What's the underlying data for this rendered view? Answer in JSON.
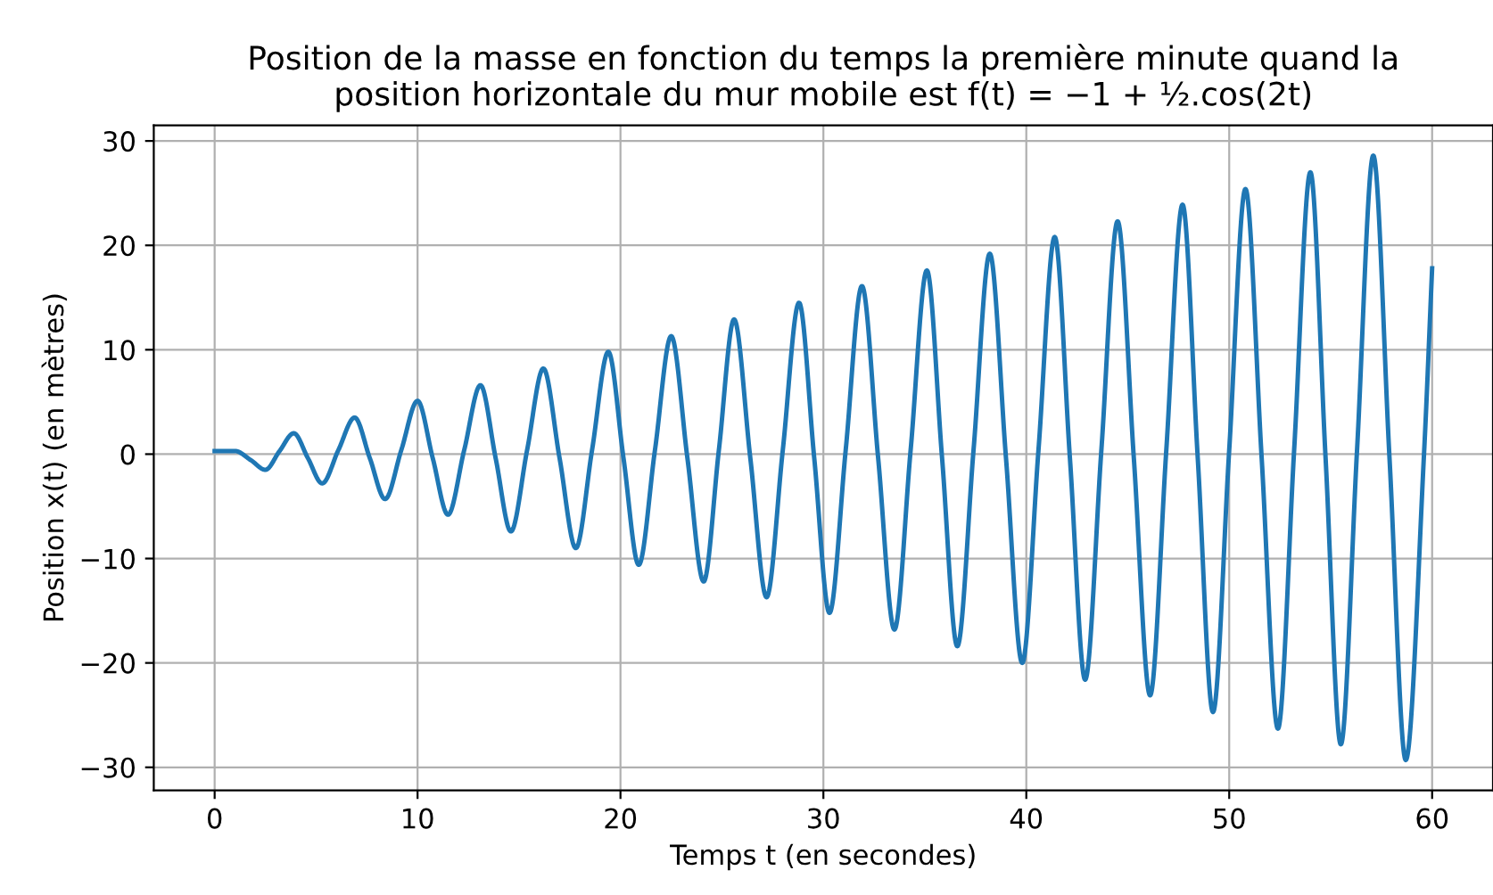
{
  "chart_data": {
    "type": "line",
    "title": "Position de la masse en fonction du temps la première minute quand la\nposition horizontale du mur mobile est f(t) = −1 + ½.cos(2t)",
    "xlabel": "Temps t (en secondes)",
    "ylabel": "Position x(t) (en mètres)",
    "x": [
      0,
      1.0,
      1.8,
      2.5,
      3.2,
      3.9,
      4.6,
      5.3,
      6.1,
      6.9,
      7.65,
      8.4,
      9.2,
      10.0,
      10.75,
      11.5,
      12.3,
      13.1,
      13.85,
      14.6,
      15.4,
      16.2,
      17.0,
      17.8,
      18.6,
      19.4,
      20.15,
      20.9,
      21.7,
      22.5,
      23.3,
      24.1,
      24.85,
      25.6,
      26.4,
      27.2,
      28.0,
      28.8,
      29.55,
      30.3,
      31.1,
      31.9,
      32.7,
      33.5,
      34.3,
      35.1,
      35.85,
      36.6,
      37.4,
      38.2,
      39.0,
      39.8,
      40.6,
      41.4,
      42.15,
      42.9,
      43.7,
      44.5,
      45.3,
      46.1,
      46.9,
      47.7,
      48.45,
      49.2,
      50.0,
      50.8,
      51.6,
      52.4,
      53.2,
      54.0,
      54.75,
      55.5,
      56.3,
      57.1,
      57.9,
      58.7,
      59.6,
      60
    ],
    "series": [
      {
        "color": "#1f77b4",
        "values": [
          0.3,
          0.3,
          -0.6,
          -1.5,
          0.3,
          2.0,
          -0.4,
          -2.8,
          0.4,
          3.5,
          -0.4,
          -4.3,
          0.4,
          5.1,
          -0.4,
          -5.8,
          0.4,
          6.6,
          -0.4,
          -7.4,
          0.4,
          8.2,
          -0.4,
          -9.0,
          0.4,
          9.8,
          -0.4,
          -10.6,
          0.4,
          11.3,
          -0.4,
          -12.2,
          0.4,
          12.9,
          -0.4,
          -13.7,
          0.4,
          14.5,
          -0.4,
          -15.2,
          0.4,
          16.1,
          -0.4,
          -16.8,
          0.4,
          17.6,
          -0.4,
          -18.4,
          0.4,
          19.2,
          -0.4,
          -20.0,
          0.4,
          20.8,
          -0.4,
          -21.6,
          0.4,
          22.3,
          -0.4,
          -23.1,
          0.4,
          23.9,
          -0.4,
          -24.7,
          0.4,
          25.4,
          -0.4,
          -26.3,
          0.4,
          27.0,
          -0.4,
          -27.8,
          0.4,
          28.6,
          -0.4,
          -29.3,
          0,
          17.8
        ]
      }
    ],
    "xlim": [
      -3,
      63
    ],
    "ylim": [
      -32.2,
      31.5
    ],
    "xticks": [
      0,
      10,
      20,
      30,
      40,
      50,
      60
    ],
    "yticks": [
      -30,
      -20,
      -10,
      0,
      10,
      20,
      30
    ],
    "grid": true,
    "line_style": "solid",
    "marker": "none"
  }
}
